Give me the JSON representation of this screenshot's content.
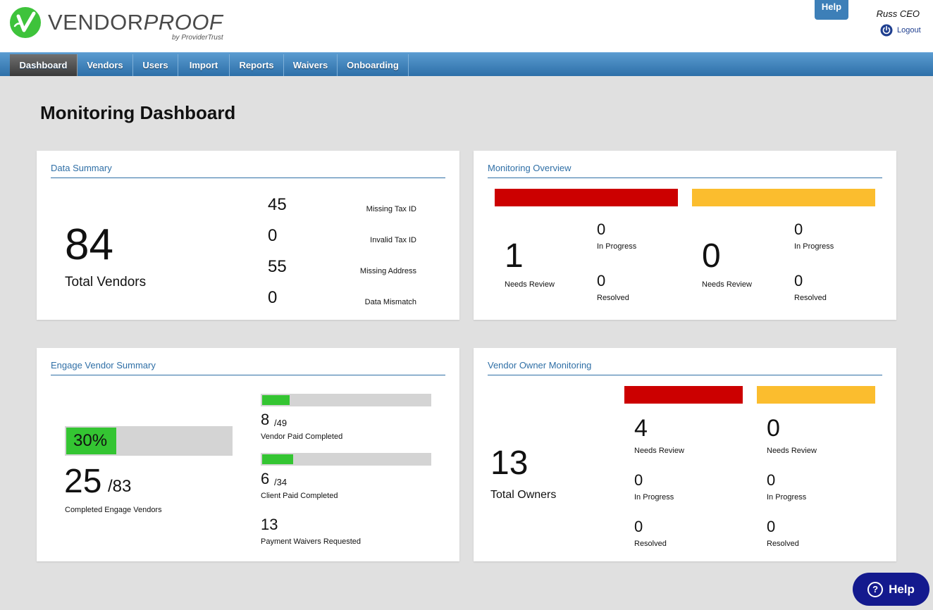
{
  "brand": {
    "name_regular": "VENDOR",
    "name_italic": "PROOF",
    "byline": "by ProviderTrust",
    "logo_icon": "vendorproof-v-icon",
    "accent_green": "#3ec33b"
  },
  "header": {
    "help_label": "Help",
    "user_name": "Russ CEO",
    "logout_label": "Logout"
  },
  "nav": {
    "tabs": [
      {
        "label": "Dashboard",
        "active": true
      },
      {
        "label": "Vendors"
      },
      {
        "label": "Users"
      },
      {
        "label": "Import"
      },
      {
        "label": "Reports"
      },
      {
        "label": "Waivers"
      },
      {
        "label": "Onboarding"
      }
    ]
  },
  "page": {
    "title": "Monitoring Dashboard"
  },
  "data_summary": {
    "title": "Data Summary",
    "total": "84",
    "total_label": "Total Vendors",
    "items": [
      {
        "value": "45",
        "label": "Missing Tax ID"
      },
      {
        "value": "0",
        "label": "Invalid Tax ID"
      },
      {
        "value": "55",
        "label": "Missing Address"
      },
      {
        "value": "0",
        "label": "Data Mismatch"
      }
    ]
  },
  "monitoring_overview": {
    "title": "Monitoring Overview",
    "red": {
      "needs_review": "1",
      "needs_review_label": "Needs Review",
      "in_progress": "0",
      "in_progress_label": "In Progress",
      "resolved": "0",
      "resolved_label": "Resolved"
    },
    "yellow": {
      "needs_review": "0",
      "needs_review_label": "Needs Review",
      "in_progress": "0",
      "in_progress_label": "In Progress",
      "resolved": "0",
      "resolved_label": "Resolved"
    }
  },
  "engage_summary": {
    "title": "Engage Vendor Summary",
    "percent_label": "30%",
    "percent": 0.3,
    "completed": "25",
    "completed_of": "/83",
    "completed_label": "Completed Engage Vendors",
    "vendor_paid": {
      "value": "8",
      "of": "/49",
      "label": "Vendor Paid Completed",
      "fraction": 0.16
    },
    "client_paid": {
      "value": "6",
      "of": "/34",
      "label": "Client Paid Completed",
      "fraction": 0.18
    },
    "waivers": {
      "value": "13",
      "label": "Payment Waivers Requested"
    }
  },
  "owner_monitoring": {
    "title": "Vendor Owner Monitoring",
    "total": "13",
    "total_label": "Total Owners",
    "red": {
      "needs_review": "4",
      "needs_review_label": "Needs Review",
      "in_progress": "0",
      "in_progress_label": "In Progress",
      "resolved": "0",
      "resolved_label": "Resolved"
    },
    "yellow": {
      "needs_review": "0",
      "needs_review_label": "Needs Review",
      "in_progress": "0",
      "in_progress_label": "In Progress",
      "resolved": "0",
      "resolved_label": "Resolved"
    }
  },
  "help_widget": {
    "label": "Help",
    "icon": "question-circle-icon"
  },
  "colors": {
    "nav_blue": "#2d6fa8",
    "card_title_blue": "#2f6fa6",
    "alert_red": "#cc0000",
    "alert_yellow": "#fbbd2e",
    "progress_green": "#34c532",
    "help_navy": "#141a8e"
  }
}
